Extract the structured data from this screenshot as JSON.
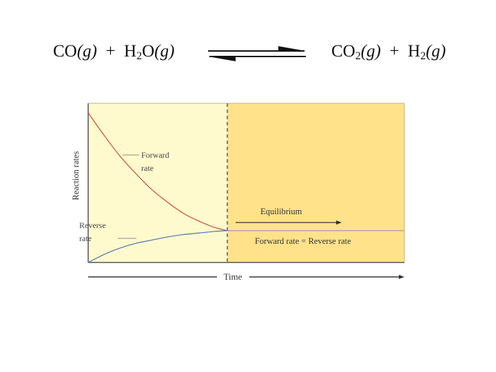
{
  "equation": {
    "left": {
      "co": "CO",
      "co_phase": "(g)",
      "plus": "+",
      "h": "H",
      "h_sub": "2",
      "o": "O",
      "o_phase": "(g)"
    },
    "right": {
      "co": "CO",
      "co_sub": "2",
      "co_phase": "(g)",
      "plus": "+",
      "h": "H",
      "h_sub": "2",
      "h_phase": "(g)"
    }
  },
  "chart_data": {
    "type": "line",
    "title": "",
    "xlabel": "Time",
    "ylabel": "Reaction rates",
    "grid": false,
    "axes_ticks": false,
    "x_range": [
      0,
      1
    ],
    "y_range": [
      0,
      1
    ],
    "equilibrium_time": 0.44,
    "equilibrium_rate": 0.2,
    "regions": [
      {
        "name": "pre-equilibrium",
        "x_range": [
          0,
          0.44
        ],
        "color": "#fffacd"
      },
      {
        "name": "equilibrium",
        "x_range": [
          0.44,
          1
        ],
        "color": "#ffe28a"
      }
    ],
    "series": [
      {
        "name": "Forward rate",
        "color": "#cc4a3a",
        "x": [
          0,
          0.05,
          0.1,
          0.15,
          0.2,
          0.25,
          0.3,
          0.35,
          0.4,
          0.44
        ],
        "y": [
          0.94,
          0.8,
          0.67,
          0.56,
          0.46,
          0.38,
          0.31,
          0.26,
          0.22,
          0.2
        ]
      },
      {
        "name": "Reverse rate",
        "color": "#4a72b8",
        "x": [
          0,
          0.05,
          0.1,
          0.15,
          0.2,
          0.25,
          0.3,
          0.35,
          0.4,
          0.44
        ],
        "y": [
          0,
          0.05,
          0.09,
          0.12,
          0.14,
          0.16,
          0.175,
          0.185,
          0.195,
          0.2
        ]
      },
      {
        "name": "Equilibrium rate",
        "color": "#9b8fb0",
        "x": [
          0.44,
          1
        ],
        "y": [
          0.2,
          0.2
        ]
      }
    ],
    "annotations": {
      "forward_label_line1": "Forward",
      "forward_label_line2": "rate",
      "reverse_label_line1": "Reverse",
      "reverse_label_line2": "rate",
      "equilibrium": "Equilibrium",
      "equality": "Forward rate = Reverse rate"
    }
  }
}
